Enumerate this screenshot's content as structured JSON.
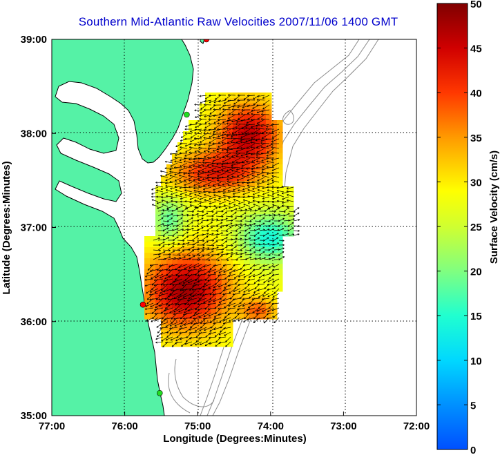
{
  "title": "Southern Mid-Atlantic Raw Velocities 2007/11/06 1400 GMT",
  "x_axis": {
    "label": "Longitude (Degrees:Minutes)",
    "ticks": [
      "77:00",
      "76:00",
      "75:00",
      "74:00",
      "73:00",
      "72:00"
    ]
  },
  "y_axis": {
    "label": "Latitude (Degrees:Minutes)",
    "ticks": [
      "39:00",
      "38:00",
      "37:00",
      "36:00",
      "35:00"
    ]
  },
  "colorbar": {
    "label": "Surface Velocity (cm/s)",
    "ticks": [
      "50",
      "45",
      "40",
      "35",
      "30",
      "25",
      "20",
      "15",
      "10",
      "5",
      "0"
    ],
    "range": [
      0,
      50
    ],
    "colormap": "jet"
  },
  "colors": {
    "land": "#55f2a6",
    "coast": "#000000",
    "bathymetry": "#8c8c8c",
    "station_red": "#ff0000",
    "station_green": "#22dd22"
  },
  "stations": [
    {
      "lon": -74.88,
      "lat": 39.0,
      "color": "red"
    },
    {
      "lon": -75.15,
      "lat": 38.2,
      "color": "green"
    },
    {
      "lon": -75.75,
      "lat": 36.18,
      "color": "red"
    },
    {
      "lon": -75.52,
      "lat": 35.24,
      "color": "green"
    }
  ]
}
